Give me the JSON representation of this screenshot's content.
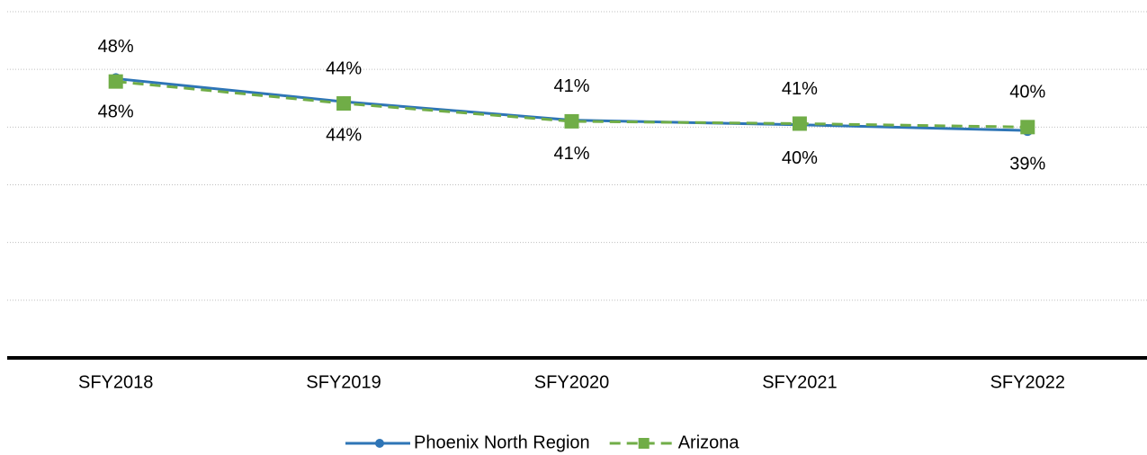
{
  "chart_data": {
    "type": "line",
    "categories": [
      "SFY2018",
      "SFY2019",
      "SFY2020",
      "SFY2021",
      "SFY2022"
    ],
    "series": [
      {
        "name": "Phoenix North Region",
        "color": "#2e75b6",
        "values": [
          48.4,
          44.4,
          41.2,
          40.4,
          39.4
        ],
        "value_labels": [
          "48%",
          "44%",
          "41%",
          "40%",
          "39%"
        ]
      },
      {
        "name": "Arizona",
        "color": "#70ad47",
        "values": [
          47.9,
          44.1,
          41.0,
          40.6,
          40.0
        ],
        "value_labels": [
          "48%",
          "44%",
          "41%",
          "41%",
          "40%"
        ]
      }
    ],
    "ylim": [
      0,
      60
    ],
    "yticks": [
      0,
      10,
      20,
      30,
      40,
      50,
      60
    ],
    "grid": true
  }
}
